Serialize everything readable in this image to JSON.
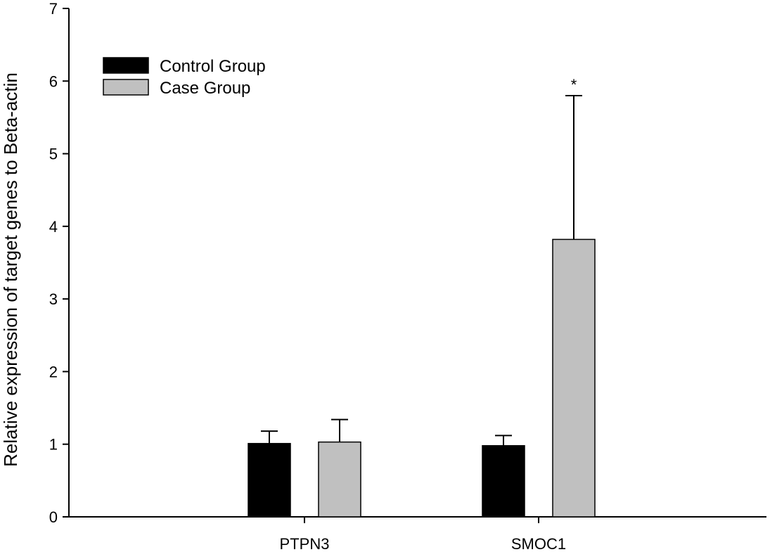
{
  "chart_data": {
    "type": "bar",
    "title": "",
    "xlabel": "",
    "ylabel": "Relative expression of target genes to Beta-actin",
    "ylim": [
      0,
      7
    ],
    "yticks": [
      0,
      1,
      2,
      3,
      4,
      5,
      6,
      7
    ],
    "categories": [
      "PTPN3",
      "SMOC1"
    ],
    "series": [
      {
        "name": "Control Group",
        "color": "#000000",
        "values": [
          1.01,
          0.98
        ],
        "errors": [
          0.17,
          0.14
        ]
      },
      {
        "name": "Case Group",
        "color": "#c0c0c0",
        "values": [
          1.03,
          3.82
        ],
        "errors": [
          0.31,
          1.98
        ]
      }
    ],
    "annotations": [
      {
        "category": "SMOC1",
        "series": "Case Group",
        "text": "*"
      }
    ],
    "legend_position": "top-left",
    "grid": false
  }
}
